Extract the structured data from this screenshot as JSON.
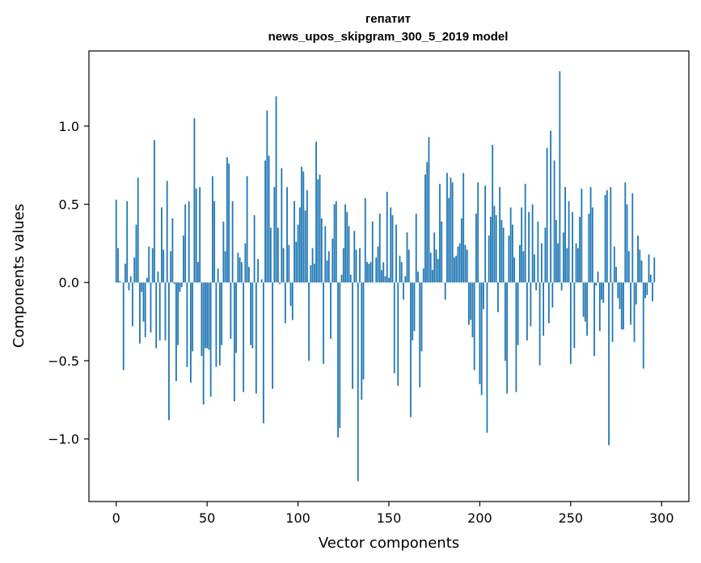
{
  "chart_data": {
    "type": "bar",
    "title_line1": "гепатит",
    "title_line2": "news_upos_skipgram_300_5_2019 model",
    "xlabel": "Vector components",
    "ylabel": "Components values",
    "xlim": [
      -15,
      315
    ],
    "ylim": [
      -1.4,
      1.48
    ],
    "xticks": [
      0,
      50,
      100,
      150,
      200,
      250,
      300
    ],
    "yticks": [
      -1.0,
      -0.5,
      0.0,
      0.5,
      1.0
    ],
    "ytick_labels": [
      "−1.0",
      "−0.5",
      "0.0",
      "0.5",
      "1.0"
    ],
    "bar_color": "#1f77b4",
    "grid": false,
    "values": [
      0.53,
      0.22,
      0.01,
      0.0,
      -0.56,
      0.12,
      0.52,
      -0.05,
      0.04,
      -0.28,
      0.16,
      0.37,
      0.67,
      -0.39,
      -0.06,
      -0.25,
      -0.35,
      0.03,
      0.23,
      -0.32,
      0.22,
      0.91,
      -0.42,
      0.07,
      -0.37,
      0.48,
      0.21,
      -0.37,
      0.65,
      -0.88,
      0.2,
      0.41,
      -0.01,
      -0.63,
      -0.4,
      -0.06,
      -0.03,
      0.3,
      0.5,
      -0.54,
      0.52,
      -0.64,
      -0.44,
      1.05,
      0.6,
      0.13,
      0.61,
      -0.47,
      -0.78,
      -0.42,
      -0.42,
      -0.43,
      -0.73,
      0.68,
      0.52,
      -0.54,
      0.09,
      -0.53,
      -0.4,
      0.39,
      0.2,
      0.8,
      0.76,
      -0.36,
      0.52,
      -0.76,
      -0.45,
      0.19,
      0.16,
      0.13,
      -0.7,
      0.25,
      0.68,
      0.1,
      -0.4,
      -0.42,
      0.43,
      -0.71,
      0.15,
      0.0,
      0.02,
      -0.9,
      0.78,
      1.1,
      0.81,
      0.35,
      -0.68,
      0.61,
      1.19,
      0.35,
      -0.01,
      0.73,
      0.22,
      -0.26,
      0.61,
      0.24,
      -0.15,
      -0.24,
      0.52,
      0.26,
      0.37,
      0.48,
      0.74,
      0.71,
      0.46,
      0.59,
      -0.5,
      0.11,
      0.22,
      0.12,
      0.9,
      0.66,
      0.69,
      0.41,
      -0.52,
      0.36,
      0.14,
      0.2,
      -0.36,
      0.28,
      0.5,
      0.52,
      -0.99,
      -0.93,
      0.05,
      0.22,
      0.5,
      0.45,
      0.36,
      0.05,
      -0.68,
      0.33,
      0.21,
      -1.27,
      0.22,
      -0.75,
      -0.62,
      0.54,
      0.13,
      0.12,
      0.13,
      0.39,
      0.0,
      0.16,
      0.23,
      0.44,
      0.08,
      0.13,
      0.04,
      0.58,
      0.03,
      0.48,
      0.43,
      -0.58,
      0.37,
      -0.66,
      0.17,
      0.13,
      -0.11,
      0.04,
      0.32,
      0.21,
      -0.86,
      -0.37,
      -0.31,
      0.44,
      0.07,
      -0.67,
      -0.44,
      0.09,
      0.69,
      0.77,
      0.93,
      0.19,
      0.08,
      0.32,
      0.21,
      0.15,
      0.63,
      0.39,
      0.0,
      -0.11,
      0.7,
      0.54,
      0.67,
      0.64,
      0.16,
      0.17,
      0.23,
      0.25,
      0.41,
      0.7,
      0.24,
      0.21,
      -0.27,
      -0.24,
      -0.35,
      -0.56,
      0.44,
      0.64,
      -0.65,
      -0.72,
      -0.17,
      0.62,
      -0.96,
      0.3,
      0.42,
      0.88,
      0.49,
      0.43,
      -0.19,
      0.61,
      0.4,
      0.35,
      -0.5,
      -0.71,
      0.3,
      0.48,
      0.37,
      0.16,
      -0.7,
      -0.4,
      0.24,
      0.48,
      0.2,
      0.63,
      -0.37,
      0.45,
      -0.28,
      0.5,
      0.18,
      -0.05,
      0.39,
      -0.53,
      0.25,
      -0.34,
      0.35,
      0.86,
      -0.26,
      0.97,
      -0.16,
      0.78,
      0.4,
      0.25,
      1.35,
      -0.05,
      0.32,
      0.61,
      0.22,
      0.52,
      -0.52,
      0.45,
      -0.42,
      0.25,
      0.22,
      0.42,
      0.6,
      -0.22,
      -0.25,
      -0.34,
      0.44,
      0.61,
      0.48,
      -0.47,
      -0.02,
      0.07,
      -0.31,
      -0.11,
      -0.13,
      0.56,
      0.59,
      -1.04,
      0.61,
      -0.38,
      0.23,
      0.1,
      -0.1,
      -0.17,
      -0.3,
      -0.3,
      0.64,
      0.5,
      0.2,
      -0.27,
      0.57,
      -0.38,
      -0.14,
      0.3,
      0.21,
      0.14,
      -0.55,
      -0.1,
      -0.08,
      0.18,
      0.05,
      -0.12,
      0.16
    ]
  }
}
